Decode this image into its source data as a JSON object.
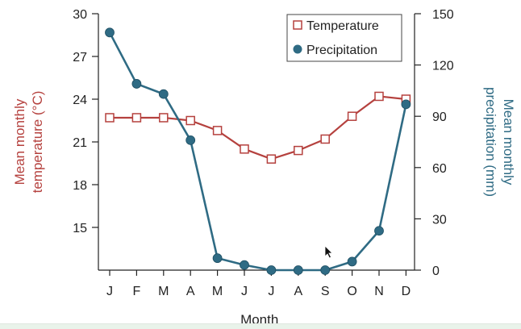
{
  "chart_data": {
    "type": "line",
    "categories": [
      "J",
      "F",
      "M",
      "A",
      "M",
      "J",
      "J",
      "A",
      "S",
      "O",
      "N",
      "D"
    ],
    "xlabel": "Month",
    "y_left": {
      "label_line1": "Mean monthly",
      "label_line2": "temperature (°C)",
      "range": [
        12,
        30
      ],
      "ticks": [
        15,
        18,
        21,
        24,
        27,
        30
      ]
    },
    "y_right": {
      "label_line1": "Mean monthly",
      "label_line2": "precipitation (mm)",
      "range": [
        0,
        150
      ],
      "ticks": [
        0,
        30,
        60,
        90,
        120,
        150
      ]
    },
    "series": [
      {
        "name": "Temperature",
        "axis": "left",
        "marker": "open-square",
        "values": [
          22.7,
          22.7,
          22.7,
          22.5,
          21.8,
          20.5,
          19.8,
          20.4,
          21.2,
          22.8,
          24.2,
          24.0
        ]
      },
      {
        "name": "Precipitation",
        "axis": "right",
        "marker": "filled-circle",
        "values": [
          139,
          109,
          103,
          76,
          7,
          3,
          0,
          0,
          0,
          5,
          23,
          97
        ]
      }
    ],
    "legend": {
      "placement": "top-right",
      "temperature_label": "Temperature",
      "precipitation_label": "Precipitation"
    }
  },
  "colors": {
    "temperature": "#b5413e",
    "precipitation": "#2f6b84",
    "axis": "#222222",
    "text": "#222222"
  }
}
